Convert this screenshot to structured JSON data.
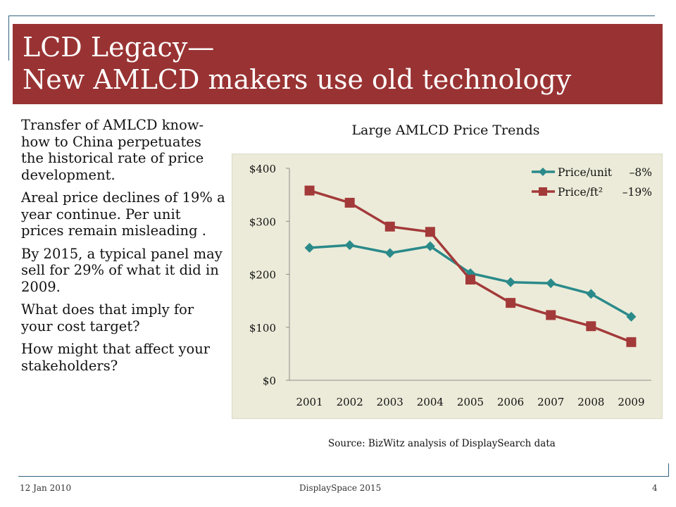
{
  "slide": {
    "title_line1": "LCD Legacy—",
    "title_line2": "New AMLCD makers use old technology",
    "bullets": [
      "Transfer of AMLCD know-how to China perpetuates the historical rate of price development.",
      "Areal price declines of 19% a year continue. Per unit prices remain misleading .",
      "By 2015, a typical panel may sell for 29% of what it did in 2009.",
      "What does that imply for your cost target?",
      "How might that affect your stakeholders?"
    ],
    "source": "Source: BizWitz analysis of DisplaySearch data"
  },
  "footer": {
    "date": "12 Jan 2010",
    "center": "DisplaySpace 2015",
    "page": "4"
  },
  "colors": {
    "title_band": "#993333",
    "accent_lines": "#33647e",
    "chart_background": "#ecebd9",
    "series_unit": "#2a8a8a",
    "series_ft2": "#a33a3a"
  },
  "chart_data": {
    "type": "line",
    "title": "Large AMLCD Price Trends",
    "x": [
      "2001",
      "2002",
      "2003",
      "2004",
      "2005",
      "2006",
      "2007",
      "2008",
      "2009"
    ],
    "y_ticks": [
      "$0",
      "$100",
      "$200",
      "$300",
      "$400"
    ],
    "ylim": [
      0,
      400
    ],
    "grid": false,
    "legend_position": "top-right",
    "series": [
      {
        "name": "Price/unit",
        "change": "–8%",
        "marker": "diamond",
        "color": "#2a8a8a",
        "values": [
          250,
          255,
          240,
          253,
          202,
          185,
          183,
          163,
          120
        ]
      },
      {
        "name": "Price/ft²",
        "change": "–19%",
        "marker": "square",
        "color": "#a33a3a",
        "values": [
          358,
          335,
          290,
          280,
          190,
          146,
          123,
          102,
          72
        ]
      }
    ]
  }
}
